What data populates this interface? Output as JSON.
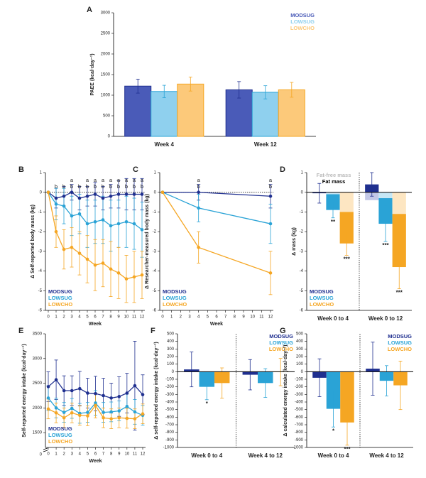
{
  "chart_data": [
    {
      "type": "bar",
      "title": "A",
      "ylabel": "PAEE (kcal·day⁻¹)",
      "categories": [
        "Week 4",
        "Week 12"
      ],
      "series": [
        {
          "name": "MODSUG",
          "color": "#4a5bb8",
          "edgecolor": "#1f2f8f",
          "values": [
            1220,
            1130
          ],
          "errors": [
            170,
            200
          ]
        },
        {
          "name": "LOWSUG",
          "color": "#8fd0ee",
          "edgecolor": "#2aa3d6",
          "values": [
            1090,
            1070
          ],
          "errors": [
            150,
            160
          ]
        },
        {
          "name": "LOWCHO",
          "color": "#fcc97a",
          "edgecolor": "#f5a623",
          "values": [
            1270,
            1130
          ],
          "errors": [
            170,
            180
          ]
        }
      ],
      "ylim": [
        0,
        3000
      ],
      "yticks": [
        0,
        500,
        1000,
        1500,
        2000,
        2500,
        3000
      ],
      "legend": "upper right"
    },
    {
      "type": "line",
      "title": "B",
      "ylabel": "Δ Self-reported body mass (kg)",
      "xlabel": "Week",
      "x": [
        0,
        1,
        2,
        3,
        4,
        5,
        6,
        7,
        8,
        9,
        10,
        11,
        12
      ],
      "series": [
        {
          "name": "MODSUG",
          "color": "#1f2f8f",
          "values": [
            0,
            -0.3,
            -0.2,
            0,
            -0.3,
            -0.2,
            -0.1,
            -0.3,
            -0.2,
            -0.1,
            -0.1,
            -0.1,
            -0.1
          ],
          "errors": [
            0,
            0.5,
            0.5,
            0.4,
            0.6,
            0.5,
            0.6,
            0.6,
            0.6,
            0.7,
            0.8,
            0.8,
            0.8
          ]
        },
        {
          "name": "LOWSUG",
          "color": "#2aa3d6",
          "values": [
            0,
            -0.6,
            -0.7,
            -1.2,
            -1.1,
            -1.6,
            -1.5,
            -1.4,
            -1.7,
            -1.6,
            -1.5,
            -1.6,
            -1.9
          ],
          "errors": [
            0,
            0.8,
            0.9,
            1.0,
            1.0,
            1.2,
            1.1,
            1.2,
            1.3,
            1.2,
            1.3,
            1.3,
            1.4
          ]
        },
        {
          "name": "LOWCHO",
          "color": "#f5a623",
          "values": [
            0,
            -2.0,
            -2.9,
            -2.8,
            -3.1,
            -3.4,
            -3.7,
            -3.6,
            -3.9,
            -4.1,
            -4.4,
            -4.3,
            -4.2
          ],
          "errors": [
            0,
            0.8,
            1.0,
            1.0,
            1.1,
            1.2,
            1.3,
            1.2,
            1.4,
            1.3,
            1.2,
            1.3,
            1.2
          ]
        }
      ],
      "annotations": [
        {
          "x": 1,
          "labels": [
            "b"
          ]
        },
        {
          "x": 2,
          "labels": [
            "b"
          ]
        },
        {
          "x": 3,
          "labels": [
            "a",
            "b"
          ]
        },
        {
          "x": 4,
          "labels": [
            "b"
          ]
        },
        {
          "x": 5,
          "labels": [
            "a",
            "b"
          ]
        },
        {
          "x": 6,
          "labels": [
            "a",
            "b"
          ]
        },
        {
          "x": 7,
          "labels": [
            "a",
            "b"
          ]
        },
        {
          "x": 8,
          "labels": [
            "a",
            "b"
          ]
        },
        {
          "x": 9,
          "labels": [
            "a",
            "b"
          ]
        },
        {
          "x": 10,
          "labels": [
            "a",
            "b"
          ]
        },
        {
          "x": 11,
          "labels": [
            "a",
            "b"
          ]
        },
        {
          "x": 12,
          "labels": [
            "a",
            "b"
          ]
        }
      ],
      "xlim": [
        0,
        12
      ],
      "xticks": [
        0,
        1,
        2,
        3,
        4,
        5,
        6,
        7,
        8,
        9,
        10,
        11,
        12
      ],
      "ylim": [
        -6,
        1
      ],
      "yticks": [
        -6,
        -5,
        -4,
        -3,
        -2,
        -1,
        0,
        1
      ],
      "legend": "lower left"
    },
    {
      "type": "line",
      "title": "C",
      "ylabel": "Δ Researcher-measured body mass (kg)",
      "xlabel": "Week",
      "x": [
        0,
        4,
        12
      ],
      "series": [
        {
          "name": "MODSUG",
          "color": "#1f2f8f",
          "values": [
            0,
            0,
            -0.2
          ],
          "errors": [
            0,
            0.4,
            0.6
          ]
        },
        {
          "name": "LOWSUG",
          "color": "#2aa3d6",
          "values": [
            0,
            -0.8,
            -1.6
          ],
          "errors": [
            0,
            0.7,
            1.0
          ]
        },
        {
          "name": "LOWCHO",
          "color": "#f5a623",
          "values": [
            0,
            -2.8,
            -4.1
          ],
          "errors": [
            0,
            0.8,
            1.1
          ]
        }
      ],
      "annotations": [
        {
          "x": 4,
          "labels": [
            "a",
            "b"
          ]
        },
        {
          "x": 12,
          "labels": [
            "a",
            "b"
          ]
        }
      ],
      "xlim": [
        0,
        12
      ],
      "xticks": [
        0,
        1,
        2,
        3,
        4,
        5,
        6,
        7,
        8,
        9,
        10,
        11,
        12
      ],
      "ylim": [
        -6,
        1
      ],
      "yticks": [
        -6,
        -5,
        -4,
        -3,
        -2,
        -1,
        0,
        1
      ],
      "legend": "lower left"
    },
    {
      "type": "stacked_bar",
      "title": "D",
      "ylabel": "Δ mass (kg)",
      "categories": [
        "Week 0 to 4",
        "Week 0 to 12"
      ],
      "stack_labels": [
        "Fat-free mass",
        "Fat mass"
      ],
      "stack_label_colors": [
        "#bbbbbb",
        "#000000"
      ],
      "series": [
        {
          "name": "MODSUG",
          "color": "#1f2f8f",
          "fat_free_color": "#c3c8e6",
          "fat_free": [
            0,
            -0.4
          ],
          "values": [
            -0.05,
            0.4
          ],
          "errors": [
            0.5,
            0.6
          ]
        },
        {
          "name": "LOWSUG",
          "color": "#2aa3d6",
          "fat_free_color": "#c6e7f5",
          "fat_free": [
            -0.1,
            -0.3
          ],
          "values": [
            -0.8,
            -1.3
          ],
          "errors": [
            0.4,
            0.9
          ]
        },
        {
          "name": "LOWCHO",
          "color": "#f5a623",
          "fat_free_color": "#fde6c2",
          "fat_free": [
            -1.0,
            -1.1
          ],
          "values": [
            -1.6,
            -2.7
          ],
          "errors": [
            0.6,
            1.1
          ]
        }
      ],
      "annotations": [
        {
          "series": 1,
          "index": 0,
          "text": "**"
        },
        {
          "series": 2,
          "index": 0,
          "text": "***"
        },
        {
          "series": 1,
          "index": 1,
          "text": "***"
        },
        {
          "series": 2,
          "index": 1,
          "text": "***"
        }
      ],
      "ylim": [
        -6,
        1
      ],
      "yticks": [
        -6,
        -5,
        -4,
        -3,
        -2,
        -1,
        0,
        1
      ],
      "legend": "lower left"
    },
    {
      "type": "line",
      "title": "E",
      "ylabel": "Self-reported energy intake (kcal·day⁻¹)",
      "xlabel": "Week",
      "x": [
        0,
        1,
        2,
        3,
        4,
        5,
        6,
        7,
        8,
        9,
        10,
        11,
        12
      ],
      "series": [
        {
          "name": "MODSUG",
          "color": "#1f2f8f",
          "values": [
            2430,
            2570,
            2350,
            2350,
            2390,
            2300,
            2290,
            2250,
            2200,
            2230,
            2300,
            2450,
            2270
          ],
          "errors": [
            300,
            400,
            300,
            300,
            350,
            300,
            350,
            350,
            300,
            400,
            400,
            900,
            400
          ]
        },
        {
          "name": "LOWSUG",
          "color": "#2aa3d6",
          "values": [
            2200,
            2000,
            1910,
            1990,
            1890,
            1910,
            2100,
            1910,
            1920,
            1940,
            2030,
            1920,
            1850
          ],
          "errors": [
            250,
            200,
            200,
            200,
            200,
            200,
            250,
            200,
            200,
            200,
            250,
            250,
            200
          ]
        },
        {
          "name": "LOWCHO",
          "color": "#f5a623",
          "values": [
            1980,
            1900,
            1800,
            1900,
            1850,
            1840,
            2050,
            1800,
            1780,
            1800,
            1790,
            1780,
            1880
          ],
          "errors": [
            200,
            200,
            200,
            200,
            200,
            200,
            250,
            200,
            200,
            200,
            200,
            200,
            200
          ]
        }
      ],
      "xlim": [
        0,
        12
      ],
      "xticks": [
        0,
        1,
        2,
        3,
        4,
        5,
        6,
        7,
        8,
        9,
        10,
        11,
        12
      ],
      "ylim": [
        1200,
        3500
      ],
      "yticks": [
        1500,
        2000,
        2500,
        3000,
        3500
      ],
      "break_tick": 0,
      "legend": "lower left"
    },
    {
      "type": "bar",
      "title": "F",
      "ylabel": "Δ self-reported energy intake (kcal·day⁻¹)",
      "categories": [
        "Week 0 to 4",
        "Week 4 to 12"
      ],
      "series": [
        {
          "name": "MODSUG",
          "color": "#1f2f8f",
          "values": [
            30,
            -40
          ],
          "errors": [
            230,
            200
          ]
        },
        {
          "name": "LOWSUG",
          "color": "#2aa3d6",
          "values": [
            -200,
            -150
          ],
          "errors": [
            170,
            190
          ]
        },
        {
          "name": "LOWCHO",
          "color": "#f5a623",
          "values": [
            -150,
            -5
          ],
          "errors": [
            200,
            180
          ]
        }
      ],
      "annotations": [
        {
          "series": 1,
          "index": 0,
          "text": "*"
        }
      ],
      "ylim": [
        -1000,
        500
      ],
      "yticks": [
        -1000,
        -900,
        -800,
        -700,
        -600,
        -500,
        -400,
        -300,
        -200,
        -100,
        0,
        100,
        200,
        300,
        400,
        500
      ],
      "legend": "upper right"
    },
    {
      "type": "bar",
      "title": "G",
      "ylabel": "Δ calculated energy intake (kcal·day⁻¹)",
      "categories": [
        "Week 0 to 4",
        "Week 4 to 12"
      ],
      "series": [
        {
          "name": "MODSUG",
          "color": "#1f2f8f",
          "values": [
            -80,
            40
          ],
          "errors": [
            250,
            350
          ]
        },
        {
          "name": "LOWSUG",
          "color": "#2aa3d6",
          "values": [
            -490,
            -120
          ],
          "errors": [
            240,
            200
          ]
        },
        {
          "name": "LOWCHO",
          "color": "#f5a623",
          "values": [
            -670,
            -180
          ],
          "errors": [
            300,
            320
          ]
        }
      ],
      "annotations": [
        {
          "series": 1,
          "index": 0,
          "text": "*"
        },
        {
          "series": 2,
          "index": 0,
          "text": "***"
        }
      ],
      "ylim": [
        -1000,
        500
      ],
      "yticks": [
        -1000,
        -900,
        -800,
        -700,
        -600,
        -500,
        -400,
        -300,
        -200,
        -100,
        0,
        100,
        200,
        300,
        400,
        500
      ],
      "legend": "upper right"
    }
  ]
}
